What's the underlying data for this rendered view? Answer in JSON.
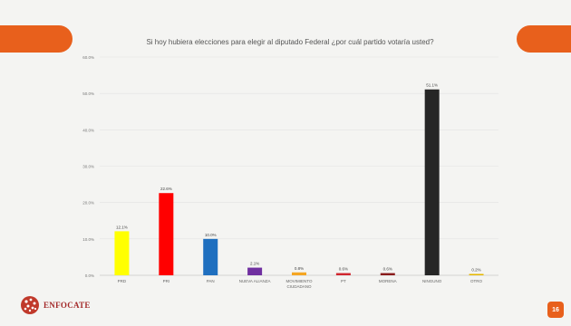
{
  "slide": {
    "title": "Si hoy hubiera elecciones para  elegir al diputado Federal ¿por cuál partido votaría usted?",
    "page_number": "16",
    "logo_text": "ENFOCATE",
    "accent_color": "#e8601c"
  },
  "chart_data": {
    "type": "bar",
    "title": "Si hoy hubiera elecciones para  elegir al diputado Federal ¿por cuál partido votaría usted?",
    "categories": [
      "PRD",
      "PRI",
      "PAN",
      "NUEVA ALIANZA",
      "MOVIMIENTO CIUDADANO",
      "PT",
      "MORENA",
      "NINGUNO",
      "OTRO"
    ],
    "values": [
      12.1,
      22.6,
      10.0,
      2.1,
      0.8,
      0.6,
      0.6,
      51.1,
      0.2
    ],
    "value_labels": [
      "12.1%",
      "22.6%",
      "10.0%",
      "2.1%",
      "0.8%",
      "0.6%",
      "0.6%",
      "51.1%",
      "0.2%"
    ],
    "colors": [
      "#ffff00",
      "#ff0000",
      "#1f6fbf",
      "#7030a0",
      "#f5a623",
      "#d0262e",
      "#8a1c1c",
      "#262626",
      "#e6b800"
    ],
    "yticks": [
      "0.0%",
      "10.0%",
      "20.0%",
      "30.0%",
      "40.0%",
      "50.0%",
      "60.0%"
    ],
    "ylim": [
      0,
      60
    ],
    "grid": true,
    "xlabel": "",
    "ylabel": ""
  }
}
